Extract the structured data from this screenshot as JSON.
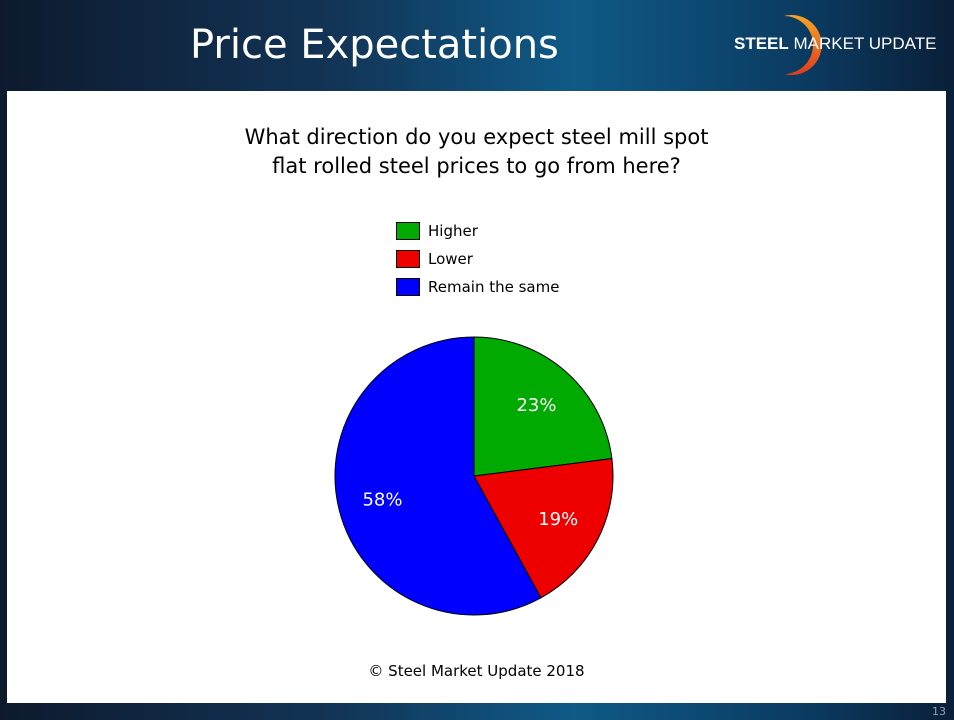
{
  "header": {
    "title": "Price Expectations",
    "logo": "STEEL MARKET UPDATE",
    "logo_bold": "STEEL",
    "logo_rest": " MARKET UPDATE"
  },
  "chart_data": {
    "type": "pie",
    "title": "What direction do you expect steel mill spot flat rolled steel prices to go from here?",
    "title_lines": [
      "What direction do you expect steel mill spot",
      "flat rolled steel prices to go from here?"
    ],
    "categories": [
      "Higher",
      "Lower",
      "Remain the same"
    ],
    "values": [
      23,
      19,
      58
    ],
    "labels": [
      "23%",
      "19%",
      "58%"
    ],
    "colors": [
      "#00aa00",
      "#ee0000",
      "#0000ff"
    ],
    "legend_placement": "top"
  },
  "footer": {
    "copyright": "© Steel Market Update 2018",
    "page_number": "13"
  }
}
